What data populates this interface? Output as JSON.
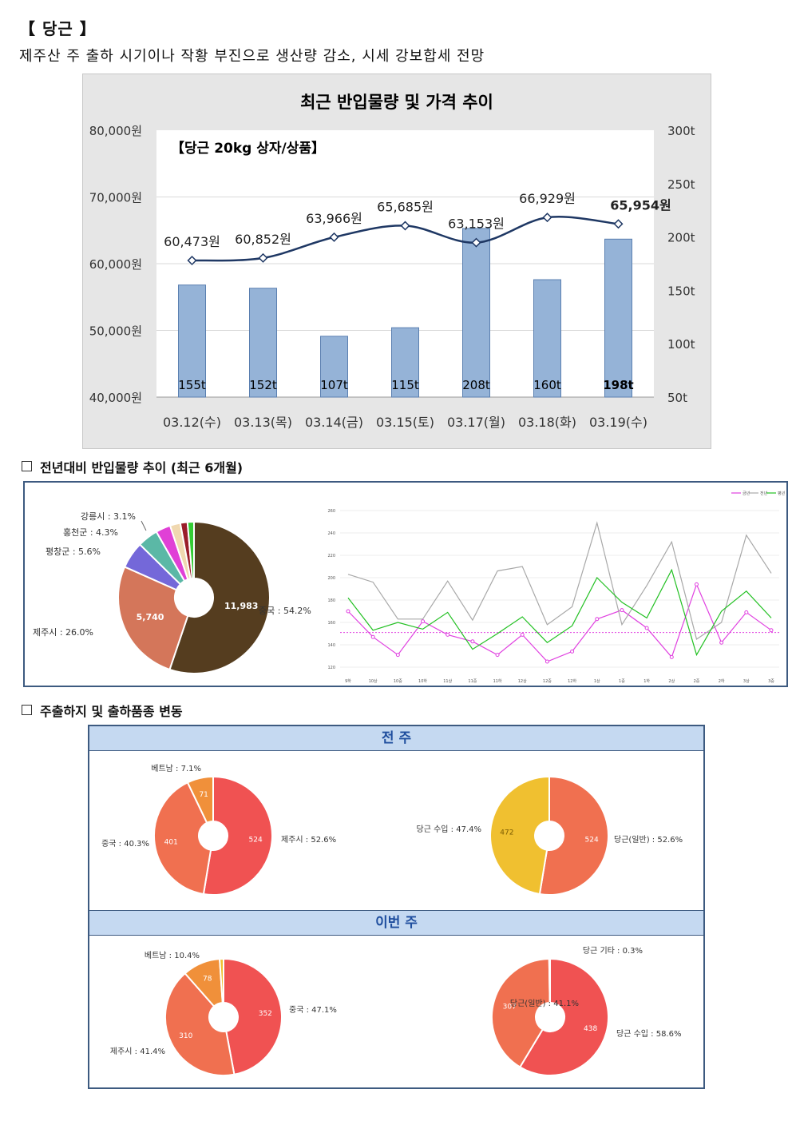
{
  "heading": "【 당근 】",
  "subtitle": "제주산 주 출하 시기이나 작황 부진으로 생산량 감소, 시세 강보합세 전망",
  "sections": {
    "history": "전년대비 반입물량 추이 (최근 6개월)",
    "origin": "주출하지 및 출하품종 변동"
  },
  "colors": {
    "bar": "#95b3d7",
    "price_line": "#1f3864",
    "panel_bg": "#e6e6e6",
    "band": "#c5d9f1",
    "border": "#3d5a80"
  },
  "chart_data": [
    {
      "type": "bar",
      "title": "최근 반입물량 및 가격 추이",
      "inner_label": "【당근 20kg 상자/상품】",
      "categories": [
        "03.12(수)",
        "03.13(목)",
        "03.14(금)",
        "03.15(토)",
        "03.17(월)",
        "03.18(화)",
        "03.19(수)"
      ],
      "series": [
        {
          "kind": "bar",
          "axis": "right",
          "values": [
            155,
            152,
            107,
            115,
            208,
            160,
            198
          ],
          "labels": [
            "155t",
            "152t",
            "107t",
            "115t",
            "208t",
            "160t",
            "198t"
          ]
        },
        {
          "kind": "line",
          "axis": "left",
          "values": [
            60473,
            60852,
            63966,
            65685,
            63153,
            66929,
            65954
          ],
          "labels": [
            "60,473원",
            "60,852원",
            "63,966원",
            "65,685원",
            "63,153원",
            "66,929원",
            "65,954원"
          ]
        }
      ],
      "ylim_left": [
        40000,
        80000
      ],
      "ylim_right": [
        50,
        300
      ],
      "left_ticks": [
        "40,000원",
        "50,000원",
        "60,000원",
        "70,000원",
        "80,000원"
      ],
      "right_ticks": [
        "50t",
        "100t",
        "150t",
        "200t",
        "250t",
        "300t"
      ]
    },
    {
      "type": "pie",
      "slices": [
        {
          "name": "중국",
          "value": 11983,
          "pct": "54.2%",
          "label": "중국 : 54.2%",
          "inner": "11,983",
          "color": "#553d1f"
        },
        {
          "name": "제주시",
          "value": 5740,
          "pct": "26.0%",
          "label": "제주시 : 26.0%",
          "inner": "5,740",
          "color": "#d4765a"
        },
        {
          "name": "평창군",
          "value": 1238,
          "pct": "5.6%",
          "label": "평창군 : 5.6%",
          "inner": "",
          "color": "#7468d9"
        },
        {
          "name": "홍천군",
          "value": 950,
          "pct": "4.3%",
          "label": "홍천군 : 4.3%",
          "inner": "",
          "color": "#5bb8a6"
        },
        {
          "name": "강릉시",
          "value": 685,
          "pct": "3.1%",
          "label": "강릉시 : 3.1%",
          "inner": "",
          "color": "#e040d6"
        },
        {
          "name": "",
          "value": 480,
          "pct": "",
          "label": "",
          "inner": "",
          "color": "#f0d8b0"
        },
        {
          "name": "",
          "value": 330,
          "pct": "",
          "label": "",
          "inner": "",
          "color": "#9a1d2a"
        },
        {
          "name": "",
          "value": 300,
          "pct": "",
          "label": "",
          "inner": "",
          "color": "#33cc33"
        }
      ]
    },
    {
      "type": "line",
      "legend": [
        "금년",
        "전년",
        "평년"
      ],
      "legend_position": "top-right",
      "categories": [
        "9하",
        "10상",
        "10중",
        "10하",
        "11상",
        "11중",
        "11하",
        "12상",
        "12중",
        "12하",
        "1상",
        "1중",
        "1하",
        "2상",
        "2중",
        "2하",
        "3상",
        "3중"
      ],
      "y_ticks": [
        "120",
        "140",
        "160",
        "180",
        "200",
        "220",
        "240",
        "260"
      ],
      "ylim": [
        115,
        265
      ],
      "series": [
        {
          "name": "금년",
          "color": "#e040e0",
          "values": [
            170,
            147,
            131,
            161,
            149,
            143,
            131,
            149,
            125,
            134,
            163,
            171,
            155,
            129,
            194,
            142,
            169,
            153
          ]
        },
        {
          "name": "전년",
          "color": "#a8a8a8",
          "values": [
            203,
            196,
            163,
            163,
            197,
            162,
            206,
            210,
            158,
            174,
            249,
            158,
            193,
            232,
            145,
            160,
            238,
            204
          ]
        },
        {
          "name": "평년",
          "color": "#22c022",
          "values": [
            182,
            153,
            160,
            154,
            169,
            136,
            150,
            165,
            142,
            157,
            200,
            178,
            164,
            207,
            131,
            170,
            188,
            164
          ]
        }
      ],
      "reference_line": {
        "value": 151,
        "color": "#e040e0",
        "style": "dotted"
      }
    },
    {
      "type": "pie",
      "group": "전 주",
      "facet": "origin",
      "slices": [
        {
          "name": "제주시",
          "value": 524,
          "label": "제주시 : 52.6%",
          "color": "#f05252"
        },
        {
          "name": "중국",
          "value": 401,
          "label": "중국 : 40.3%",
          "color": "#f07050"
        },
        {
          "name": "베트남",
          "value": 71,
          "label": "베트남 : 7.1%",
          "color": "#f0903a"
        }
      ]
    },
    {
      "type": "pie",
      "group": "전 주",
      "facet": "variety",
      "slices": [
        {
          "name": "당근(일반)",
          "value": 524,
          "label": "당근(일반) : 52.6%",
          "color": "#f07050"
        },
        {
          "name": "당근 수입",
          "value": 472,
          "label": "당근 수입 : 47.4%",
          "color": "#f0c030"
        }
      ]
    },
    {
      "type": "pie",
      "group": "이번 주",
      "facet": "origin",
      "slices": [
        {
          "name": "중국",
          "value": 352,
          "label": "중국 : 47.1%",
          "color": "#f05252"
        },
        {
          "name": "제주시",
          "value": 310,
          "label": "제주시 : 41.4%",
          "color": "#f07050"
        },
        {
          "name": "베트남",
          "value": 78,
          "label": "베트남 : 10.4%",
          "color": "#f0903a"
        },
        {
          "name": "",
          "value": 8,
          "label": "",
          "color": "#f0c030"
        }
      ]
    },
    {
      "type": "pie",
      "group": "이번 주",
      "facet": "variety",
      "slices": [
        {
          "name": "당근 수입",
          "value": 438,
          "label": "당근 수입 : 58.6%",
          "color": "#f05252"
        },
        {
          "name": "당근(일반)",
          "value": 307,
          "label": "당근(일반) : 41.1%",
          "color": "#f07050"
        },
        {
          "name": "당근 기타",
          "value": 2,
          "label": "당근 기타 : 0.3%",
          "color": "#f0903a"
        }
      ]
    }
  ]
}
